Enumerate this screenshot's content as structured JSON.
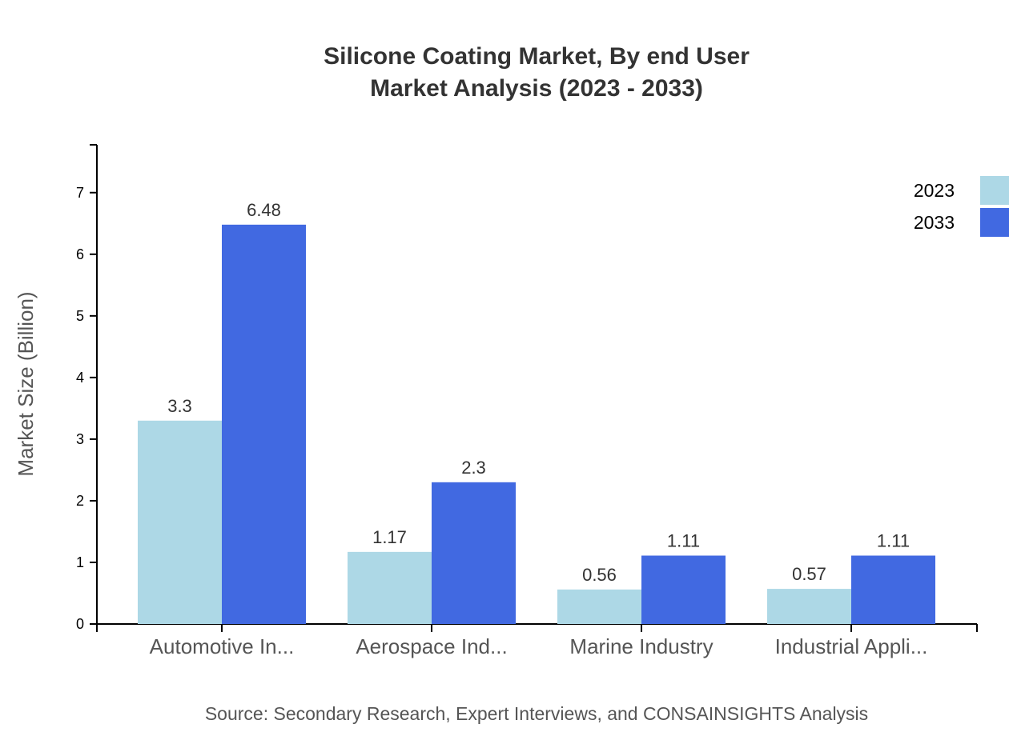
{
  "chart_data": {
    "type": "bar",
    "title": "Silicone Coating Market, By end User",
    "subtitle": "Market Analysis (2023 - 2033)",
    "xlabel": "",
    "ylabel": "Market Size (Billion)",
    "ylim": [
      0,
      7.776
    ],
    "yticks": [
      0,
      1,
      2,
      3,
      4,
      5,
      6,
      7
    ],
    "categories": [
      "Automotive In...",
      "Aerospace Ind...",
      "Marine Industry",
      "Industrial Appli..."
    ],
    "series": [
      {
        "name": "2023",
        "color": "#add8e6",
        "values": [
          3.3,
          1.17,
          0.56,
          0.57
        ]
      },
      {
        "name": "2033",
        "color": "#4169e1",
        "values": [
          6.48,
          2.3,
          1.11,
          1.11
        ]
      }
    ],
    "grid": false,
    "legend": "top-right",
    "source": "Source: Secondary Research, Expert Interviews, and CONSAINSIGHTS Analysis"
  }
}
